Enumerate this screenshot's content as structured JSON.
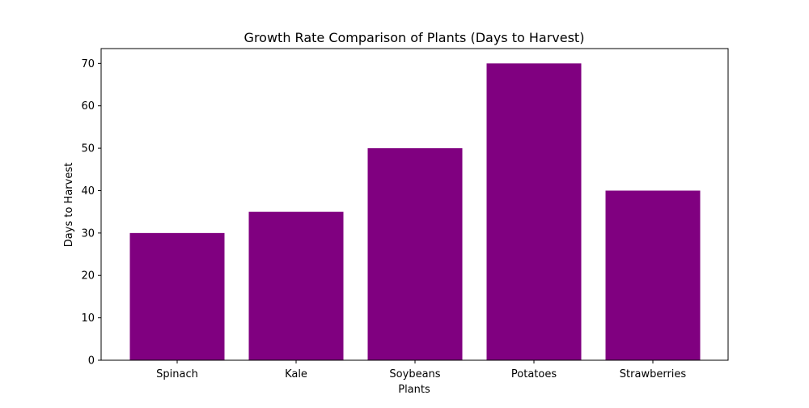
{
  "chart_data": {
    "type": "bar",
    "title": "Growth Rate Comparison of Plants (Days to Harvest)",
    "xlabel": "Plants",
    "ylabel": "Days to Harvest",
    "categories": [
      "Spinach",
      "Kale",
      "Soybeans",
      "Potatoes",
      "Strawberries"
    ],
    "values": [
      30,
      35,
      50,
      70,
      40
    ],
    "ylim": [
      0,
      73.5
    ],
    "yticks": [
      0,
      10,
      20,
      30,
      40,
      50,
      60,
      70
    ],
    "bar_color": "#800080",
    "grid": false,
    "legend": "none"
  }
}
